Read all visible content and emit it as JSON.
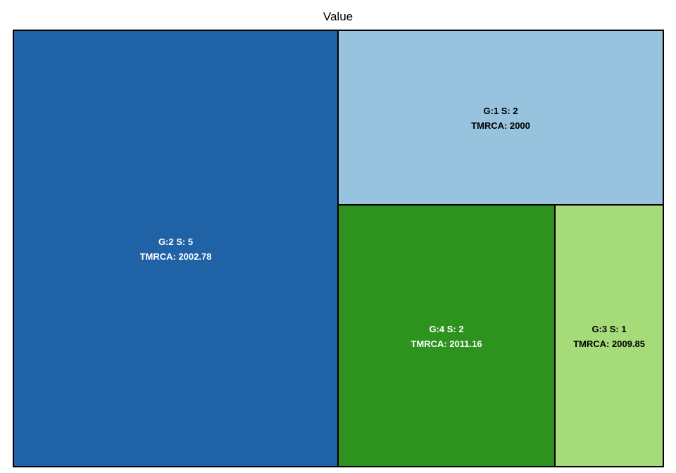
{
  "chart_data": {
    "type": "treemap",
    "title": "Value",
    "tiles": [
      {
        "line1": "G:2 S: 5",
        "line2": "TMRCA: 2002.78",
        "color": "#1f62a6",
        "text_color": "#ffffff",
        "value": 5
      },
      {
        "line1": "G:1 S: 2",
        "line2": "TMRCA: 2000",
        "color": "#97c3de",
        "text_color": "#000000",
        "value": 2
      },
      {
        "line1": "G:4 S: 2",
        "line2": "TMRCA: 2011.16",
        "color": "#2e921f",
        "text_color": "#ffffff",
        "value": 2
      },
      {
        "line1": "G:3 S: 1",
        "line2": "TMRCA: 2009.85",
        "color": "#a6db7a",
        "text_color": "#000000",
        "value": 1
      }
    ]
  }
}
